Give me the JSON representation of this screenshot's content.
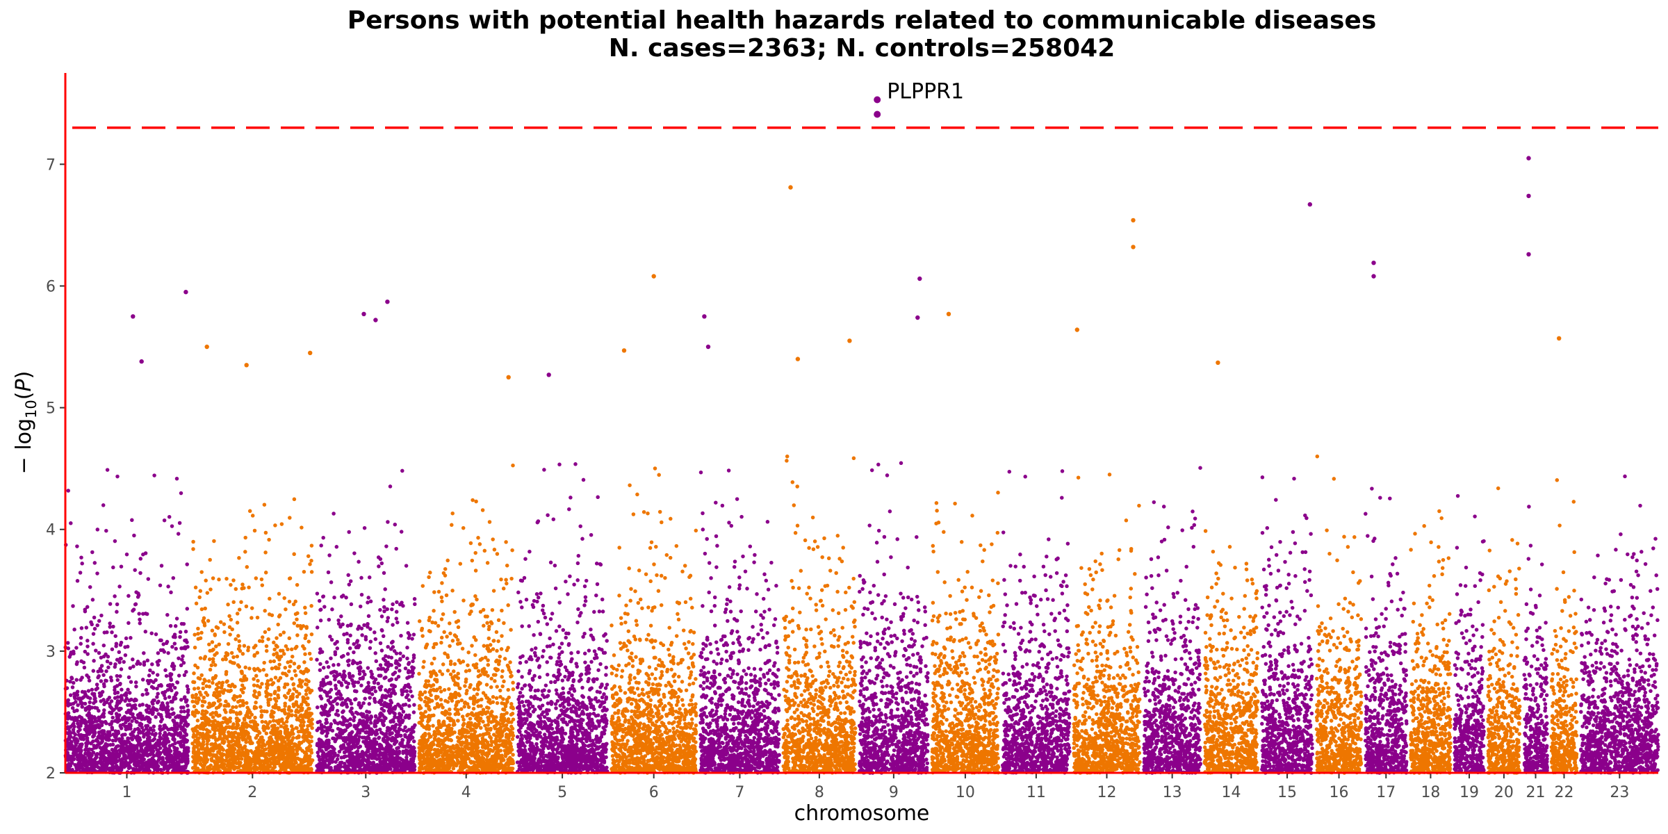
{
  "chart_data": {
    "type": "scatter",
    "title": "Persons with potential health hazards related to communicable diseases",
    "subtitle": "N. cases=2363; N. controls=258042",
    "xlabel": "chromosome",
    "ylabel": "−log10(P)",
    "ylim": [
      2,
      7.75
    ],
    "yticks": [
      2,
      3,
      4,
      5,
      6,
      7
    ],
    "significance_line": 7.3,
    "grid": false,
    "colors": {
      "odd": "#8b008b",
      "even": "#ee7600",
      "threshold": "#ff0000",
      "axis": "#ff0000"
    },
    "chromosomes": [
      {
        "label": "1",
        "size": 248,
        "color": "#8b008b"
      },
      {
        "label": "2",
        "size": 242,
        "color": "#ee7600"
      },
      {
        "label": "3",
        "size": 198,
        "color": "#8b008b"
      },
      {
        "label": "4",
        "size": 190,
        "color": "#ee7600"
      },
      {
        "label": "5",
        "size": 181,
        "color": "#8b008b"
      },
      {
        "label": "6",
        "size": 171,
        "color": "#ee7600"
      },
      {
        "label": "7",
        "size": 159,
        "color": "#8b008b"
      },
      {
        "label": "8",
        "size": 145,
        "color": "#ee7600"
      },
      {
        "label": "9",
        "size": 138,
        "color": "#8b008b"
      },
      {
        "label": "10",
        "size": 134,
        "color": "#ee7600"
      },
      {
        "label": "11",
        "size": 135,
        "color": "#8b008b"
      },
      {
        "label": "12",
        "size": 133,
        "color": "#ee7600"
      },
      {
        "label": "13",
        "size": 114,
        "color": "#8b008b"
      },
      {
        "label": "14",
        "size": 107,
        "color": "#ee7600"
      },
      {
        "label": "15",
        "size": 102,
        "color": "#8b008b"
      },
      {
        "label": "16",
        "size": 90,
        "color": "#ee7600"
      },
      {
        "label": "17",
        "size": 83,
        "color": "#8b008b"
      },
      {
        "label": "18",
        "size": 80,
        "color": "#ee7600"
      },
      {
        "label": "19",
        "size": 59,
        "color": "#8b008b"
      },
      {
        "label": "20",
        "size": 64,
        "color": "#ee7600"
      },
      {
        "label": "21",
        "size": 47,
        "color": "#8b008b"
      },
      {
        "label": "22",
        "size": 51,
        "color": "#ee7600"
      },
      {
        "label": "23",
        "size": 156,
        "color": "#8b008b"
      }
    ],
    "peaks": [
      {
        "chr": "1",
        "pos": 0.55,
        "y": 5.75
      },
      {
        "chr": "1",
        "pos": 0.62,
        "y": 5.38
      },
      {
        "chr": "1",
        "pos": 0.98,
        "y": 5.95
      },
      {
        "chr": "2",
        "pos": 0.12,
        "y": 5.5
      },
      {
        "chr": "2",
        "pos": 0.45,
        "y": 5.35
      },
      {
        "chr": "2",
        "pos": 0.98,
        "y": 5.45
      },
      {
        "chr": "3",
        "pos": 0.48,
        "y": 5.77
      },
      {
        "chr": "3",
        "pos": 0.6,
        "y": 5.72
      },
      {
        "chr": "3",
        "pos": 0.72,
        "y": 5.87
      },
      {
        "chr": "4",
        "pos": 0.95,
        "y": 5.25
      },
      {
        "chr": "5",
        "pos": 0.35,
        "y": 5.27
      },
      {
        "chr": "6",
        "pos": 0.15,
        "y": 5.47
      },
      {
        "chr": "6",
        "pos": 0.5,
        "y": 6.08
      },
      {
        "chr": "7",
        "pos": 0.05,
        "y": 5.75
      },
      {
        "chr": "7",
        "pos": 0.1,
        "y": 5.5
      },
      {
        "chr": "8",
        "pos": 0.1,
        "y": 6.81
      },
      {
        "chr": "8",
        "pos": 0.2,
        "y": 5.4
      },
      {
        "chr": "8",
        "pos": 0.92,
        "y": 5.55
      },
      {
        "chr": "9",
        "pos": 0.88,
        "y": 6.06
      },
      {
        "chr": "9",
        "pos": 0.85,
        "y": 5.74
      },
      {
        "chr": "10",
        "pos": 0.25,
        "y": 5.77
      },
      {
        "chr": "12",
        "pos": 0.05,
        "y": 5.64
      },
      {
        "chr": "12",
        "pos": 0.9,
        "y": 6.54
      },
      {
        "chr": "12",
        "pos": 0.9,
        "y": 6.32
      },
      {
        "chr": "14",
        "pos": 0.25,
        "y": 5.37
      },
      {
        "chr": "15",
        "pos": 0.95,
        "y": 6.67
      },
      {
        "chr": "17",
        "pos": 0.2,
        "y": 6.19
      },
      {
        "chr": "17",
        "pos": 0.2,
        "y": 6.08
      },
      {
        "chr": "21",
        "pos": 0.2,
        "y": 7.05
      },
      {
        "chr": "21",
        "pos": 0.2,
        "y": 6.74
      },
      {
        "chr": "21",
        "pos": 0.2,
        "y": 6.26
      },
      {
        "chr": "22",
        "pos": 0.3,
        "y": 5.57
      }
    ],
    "top_hits": [
      {
        "chr": "9",
        "pos": 0.26,
        "y": 7.53,
        "label": "PLPPR1"
      },
      {
        "chr": "9",
        "pos": 0.26,
        "y": 7.41
      }
    ]
  }
}
